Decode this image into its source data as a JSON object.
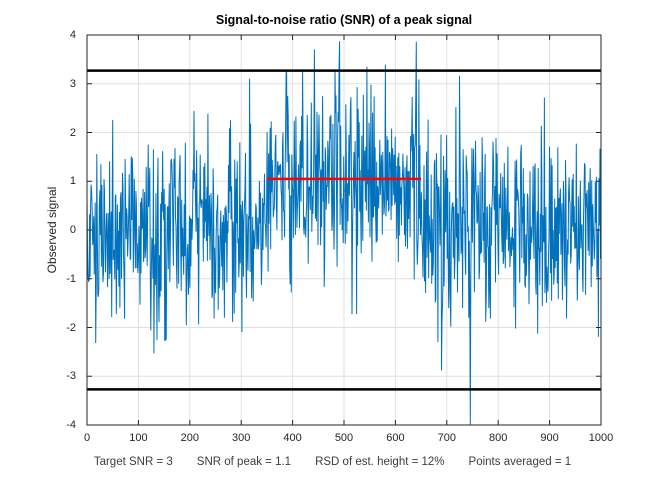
{
  "chart_data": {
    "type": "line",
    "title": "Signal-to-noise ratio (SNR) of a peak signal",
    "xlabel": "",
    "ylabel": "Observed signal",
    "xlim": [
      0,
      1000
    ],
    "ylim": [
      -4,
      4
    ],
    "xticks": [
      0,
      100,
      200,
      300,
      400,
      500,
      600,
      700,
      800,
      900,
      1000
    ],
    "yticks": [
      -4,
      -3,
      -2,
      -1,
      0,
      1,
      2,
      3,
      4
    ],
    "grid": true,
    "grid_color": "#e0e0e0",
    "axis_color": "#262626",
    "series": [
      {
        "name": "observed-signal",
        "kind": "noisy-line",
        "color": "#0072BD",
        "line_width": 1,
        "points": 1000,
        "noise_mean": 0,
        "noise_sd": 0.97,
        "peak": {
          "shape": "rectangular",
          "start": 350,
          "end": 650,
          "height": 1.05
        }
      },
      {
        "name": "upper-noise-threshold",
        "kind": "hline",
        "y": 3.27,
        "x0": 0,
        "x1": 1000,
        "color": "#000000",
        "line_width": 2.5
      },
      {
        "name": "lower-noise-threshold",
        "kind": "hline",
        "y": -3.27,
        "x0": 0,
        "x1": 1000,
        "color": "#000000",
        "line_width": 2.5
      },
      {
        "name": "measured-peak-height",
        "kind": "hline",
        "y": 1.05,
        "x0": 350,
        "x1": 650,
        "color": "#ff0000",
        "line_width": 2.5
      }
    ],
    "annotations": [
      "Target SNR = 3",
      "SNR of peak = 1.1",
      "RSD of est. height = 12%",
      "Points averaged = 1"
    ],
    "legend": null
  }
}
